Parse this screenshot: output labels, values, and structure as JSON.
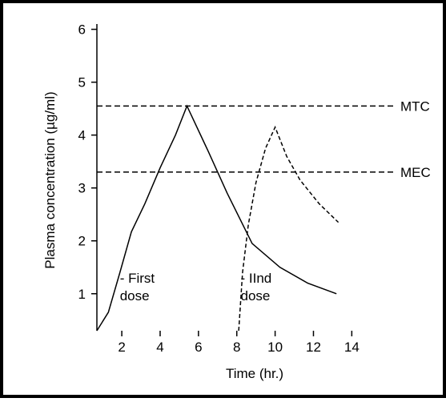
{
  "chart_data": {
    "type": "line",
    "y_label": "Plasma concentration (µg/ml)",
    "x_label": "Time (hr.)",
    "xlim": [
      0.7,
      16.2
    ],
    "ylim": [
      0.3,
      6.1
    ],
    "xticks": [
      2,
      4,
      6,
      8,
      10,
      12,
      14
    ],
    "yticks": [
      1,
      2,
      3,
      4,
      5,
      6
    ],
    "series": [
      {
        "color": "#000000",
        "dash": false,
        "x": [
          0.7,
          1.3,
          1.9,
          2.5,
          3.2,
          4.0,
          4.8,
          5.4,
          6.5,
          7.5,
          8.8,
          10.25,
          11.7,
          13.2
        ],
        "values": [
          0.3,
          0.65,
          1.4,
          2.17,
          2.7,
          3.38,
          4.0,
          4.55,
          3.7,
          2.9,
          1.95,
          1.5,
          1.2,
          1.0
        ]
      },
      {
        "color": "#000000",
        "dash": true,
        "x": [
          8.1,
          8.3,
          8.6,
          9.0,
          9.5,
          10.0,
          10.6,
          11.3,
          12.3,
          13.3
        ],
        "values": [
          0.3,
          1.4,
          2.3,
          3.1,
          3.75,
          4.15,
          3.6,
          3.15,
          2.7,
          2.35
        ]
      }
    ],
    "reference_lines": [
      {
        "label": "MTC",
        "value": 4.55
      },
      {
        "label": "MEC",
        "value": 3.3
      }
    ],
    "annotations": [
      {
        "lines": [
          "- First",
          "dose"
        ],
        "x": 1.9,
        "y": 1.3
      },
      {
        "lines": [
          "- IInd",
          "dose"
        ],
        "x": 8.2,
        "y": 1.3
      }
    ]
  }
}
